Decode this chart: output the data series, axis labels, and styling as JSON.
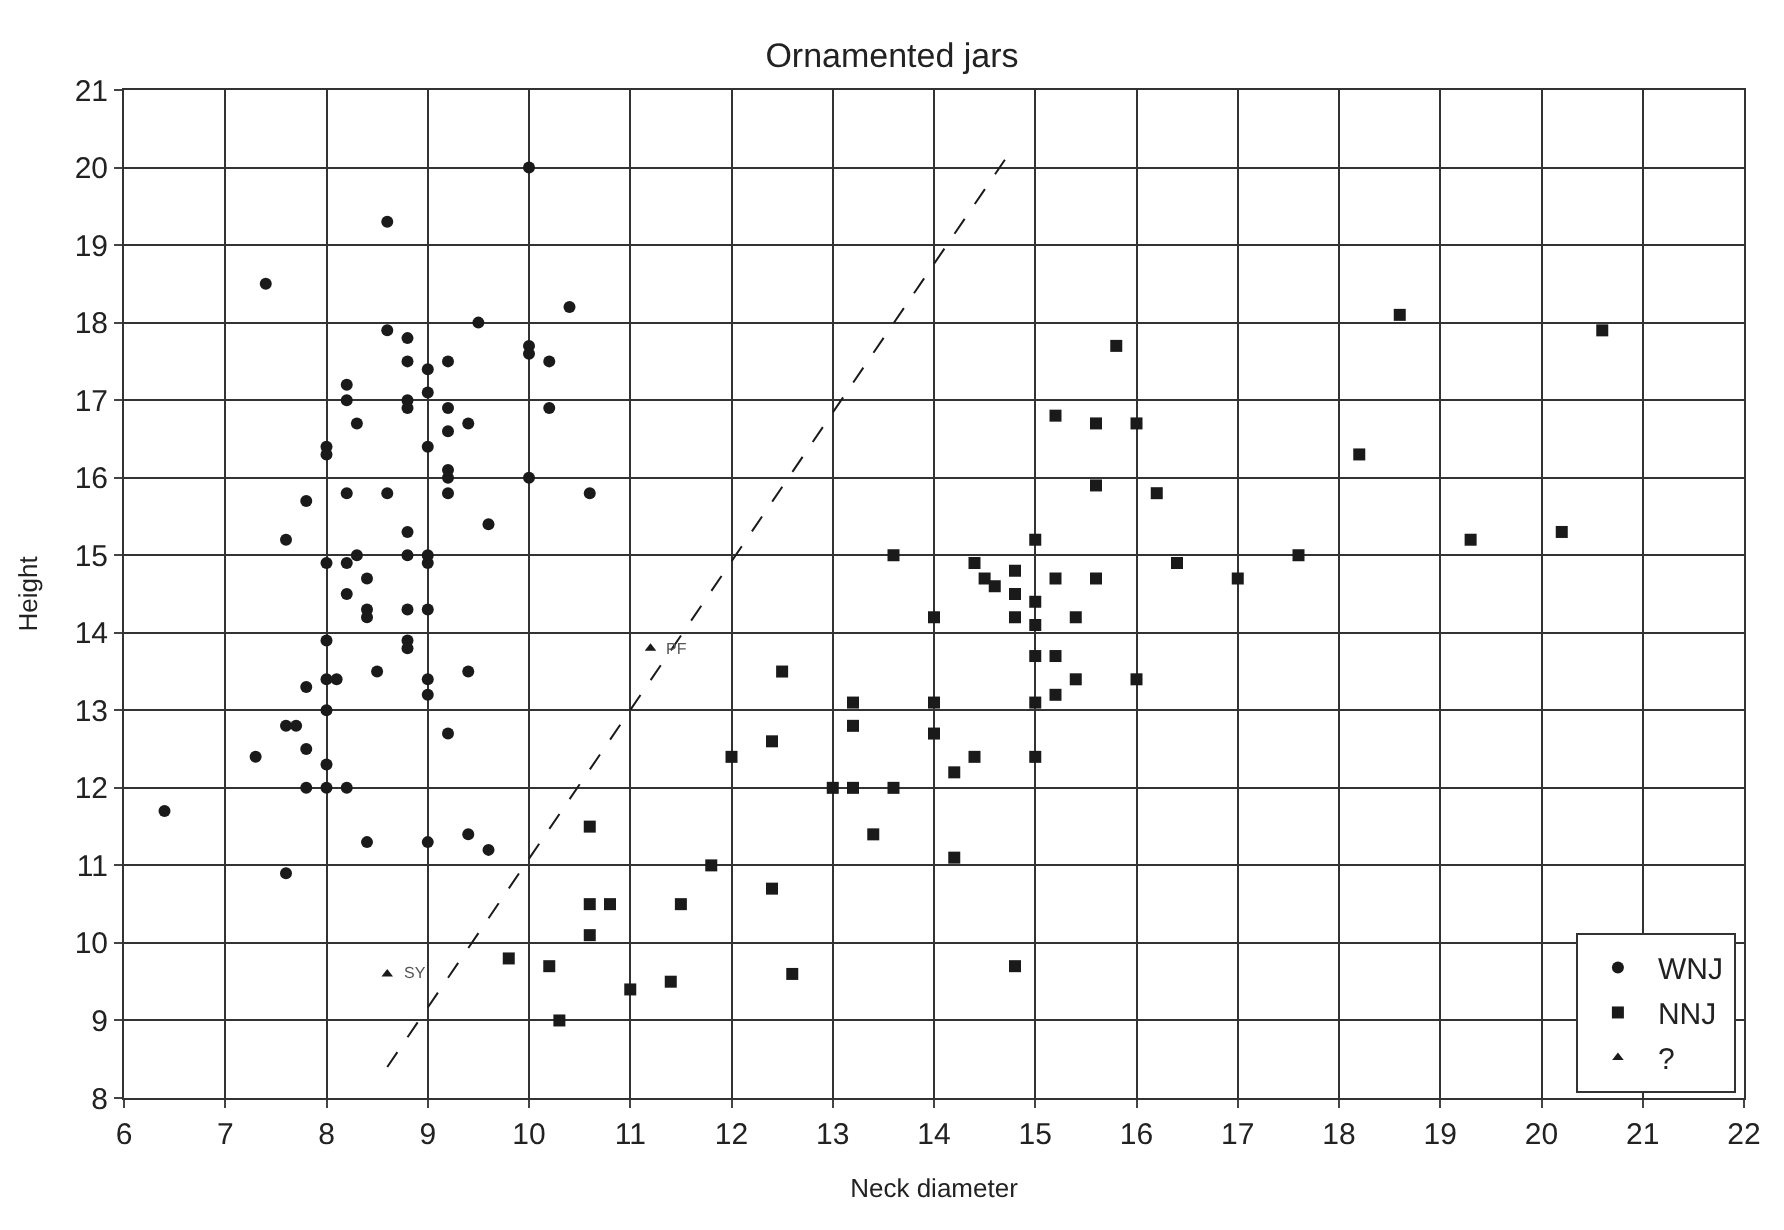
{
  "chart_data": {
    "type": "scatter",
    "title": "Ornamented jars",
    "xlabel": "Neck diameter",
    "ylabel": "Height",
    "xlim": [
      6,
      22
    ],
    "xticks": [
      6,
      7,
      8,
      9,
      10,
      11,
      12,
      13,
      14,
      15,
      16,
      17,
      18,
      19,
      20,
      21,
      22
    ],
    "ylim": [
      8,
      21
    ],
    "yticks": [
      8,
      9,
      10,
      11,
      12,
      13,
      14,
      15,
      16,
      17,
      18,
      19,
      20,
      21
    ],
    "grid": true,
    "legend": "bottom right",
    "series": [
      {
        "name": "WNJ",
        "color": "#1a1a1a",
        "marker": "circle",
        "x": [
          6.4,
          7.4,
          7.6,
          7.6,
          7.6,
          7.7,
          7.8,
          7.8,
          7.8,
          7.8,
          7.3,
          8.0,
          8.0,
          8.0,
          8.0,
          8.0,
          8.0,
          8.0,
          8.0,
          8.1,
          8.2,
          8.2,
          8.2,
          8.2,
          8.2,
          8.2,
          8.3,
          8.3,
          8.4,
          8.4,
          8.4,
          8.4,
          8.5,
          8.6,
          8.6,
          8.6,
          8.8,
          8.8,
          8.8,
          8.8,
          8.8,
          8.8,
          8.8,
          8.8,
          8.8,
          9.0,
          9.0,
          9.0,
          9.0,
          9.0,
          9.0,
          9.0,
          9.0,
          9.0,
          9.2,
          9.2,
          9.2,
          9.2,
          9.2,
          9.2,
          9.2,
          9.4,
          9.4,
          9.4,
          9.5,
          9.6,
          9.6,
          10.0,
          10.0,
          10.0,
          10.0,
          10.2,
          10.2,
          10.4,
          10.6
        ],
        "values": [
          11.7,
          18.5,
          15.2,
          12.8,
          10.9,
          12.8,
          15.7,
          13.3,
          12.5,
          12.0,
          12.4,
          16.4,
          16.3,
          14.9,
          13.9,
          13.4,
          13.0,
          12.3,
          12.0,
          13.4,
          17.2,
          17.0,
          15.8,
          14.9,
          14.5,
          12.0,
          16.7,
          15.0,
          14.7,
          14.3,
          14.2,
          11.3,
          13.5,
          19.3,
          17.9,
          15.8,
          17.8,
          17.5,
          17.0,
          16.9,
          15.3,
          15.0,
          14.3,
          13.9,
          13.8,
          17.4,
          17.1,
          16.4,
          15.0,
          14.9,
          14.3,
          13.4,
          13.2,
          11.3,
          17.5,
          16.9,
          16.6,
          16.1,
          16.0,
          15.8,
          12.7,
          16.7,
          13.5,
          11.4,
          18.0,
          15.4,
          11.2,
          20.0,
          17.7,
          17.6,
          16.0,
          17.5,
          16.9,
          18.2,
          15.8
        ]
      },
      {
        "name": "NNJ",
        "color": "#1a1a1a",
        "marker": "square",
        "x": [
          9.8,
          10.2,
          10.3,
          10.6,
          10.6,
          10.6,
          10.8,
          11.0,
          11.4,
          11.5,
          11.8,
          12.0,
          12.4,
          12.4,
          12.5,
          12.6,
          13.0,
          13.2,
          13.2,
          13.2,
          13.4,
          13.6,
          13.6,
          14.0,
          14.0,
          14.0,
          14.2,
          14.2,
          14.4,
          14.4,
          14.5,
          14.6,
          14.8,
          14.8,
          14.8,
          14.8,
          15.0,
          15.0,
          15.0,
          15.0,
          15.0,
          15.0,
          15.2,
          15.2,
          15.2,
          15.2,
          15.4,
          15.4,
          15.6,
          15.6,
          15.6,
          15.8,
          16.0,
          16.0,
          16.2,
          16.4,
          17.0,
          17.6,
          18.2,
          18.6,
          19.3,
          20.2,
          20.6
        ],
        "values": [
          9.8,
          9.7,
          9.0,
          11.5,
          10.5,
          10.1,
          10.5,
          9.4,
          9.5,
          10.5,
          11.0,
          12.4,
          12.6,
          10.7,
          13.5,
          9.6,
          12.0,
          13.1,
          12.8,
          12.0,
          11.4,
          15.0,
          12.0,
          14.2,
          13.1,
          12.7,
          12.2,
          11.1,
          14.9,
          12.4,
          14.7,
          14.6,
          14.8,
          14.5,
          14.2,
          9.7,
          15.2,
          14.4,
          14.1,
          13.7,
          13.1,
          12.4,
          16.8,
          14.7,
          13.7,
          13.2,
          14.2,
          13.4,
          16.7,
          15.9,
          14.7,
          17.7,
          16.7,
          13.4,
          15.8,
          14.9,
          14.7,
          15.0,
          16.3,
          18.1,
          15.2,
          15.3,
          17.9
        ]
      },
      {
        "name": "?",
        "color": "#1a1a1a",
        "marker": "triangle",
        "x": [
          8.6,
          11.2
        ],
        "values": [
          9.6,
          13.8
        ]
      },
      {
        "type": "line",
        "color": "#1a1a1a",
        "line_style": "dashed",
        "marker": "none",
        "x": [
          8.6,
          14.7
        ],
        "values": [
          8.4,
          20.1
        ]
      }
    ],
    "annotations": [
      {
        "text": "SY",
        "x": 8.6,
        "y": 9.6
      },
      {
        "text": "PF",
        "x": 11.2,
        "y": 13.8
      }
    ]
  }
}
